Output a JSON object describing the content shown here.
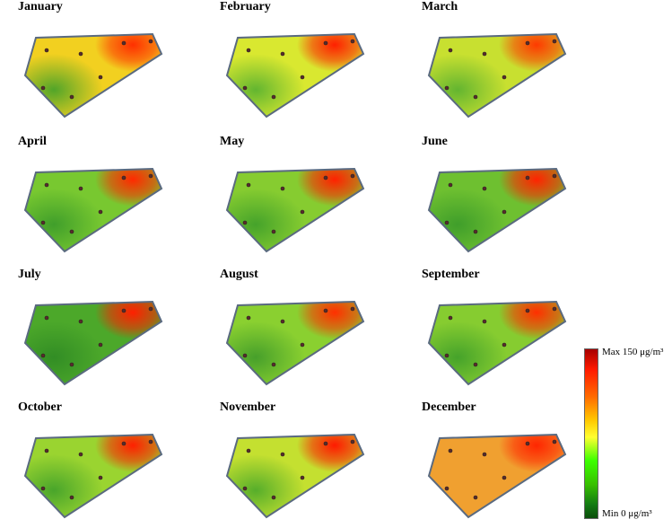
{
  "months": [
    {
      "name": "January",
      "hotspot": "#ff3000",
      "base": "#f2d020",
      "cool": "#3fa02a"
    },
    {
      "name": "February",
      "hotspot": "#ff2000",
      "base": "#d9e830",
      "cool": "#55b030"
    },
    {
      "name": "March",
      "hotspot": "#ff3a00",
      "base": "#c8e030",
      "cool": "#58b030"
    },
    {
      "name": "April",
      "hotspot": "#ff2a00",
      "base": "#78c830",
      "cool": "#3a9a2a"
    },
    {
      "name": "May",
      "hotspot": "#ff2200",
      "base": "#86cc30",
      "cool": "#3e9e2a"
    },
    {
      "name": "June",
      "hotspot": "#ff2400",
      "base": "#6ec030",
      "cool": "#3a9a2a"
    },
    {
      "name": "July",
      "hotspot": "#ff2000",
      "base": "#4ca82a",
      "cool": "#2f8a24"
    },
    {
      "name": "August",
      "hotspot": "#ff3000",
      "base": "#8ad030",
      "cool": "#3f9a2a"
    },
    {
      "name": "September",
      "hotspot": "#ff3000",
      "base": "#86cc30",
      "cool": "#3e9e2a"
    },
    {
      "name": "October",
      "hotspot": "#ff2000",
      "base": "#9ad430",
      "cool": "#40a02a"
    },
    {
      "name": "November",
      "hotspot": "#ff1a00",
      "base": "#c4e030",
      "cool": "#4aa82a"
    },
    {
      "name": "December",
      "hotspot": "#ff2600",
      "base": "#f0a030",
      "cool": "#f0a030"
    }
  ],
  "legend": {
    "max_label": "Max 150 μg/m³",
    "min_label": "Min 0 μg/m³",
    "max_value": 150,
    "min_value": 0,
    "unit": "μg/m³"
  }
}
